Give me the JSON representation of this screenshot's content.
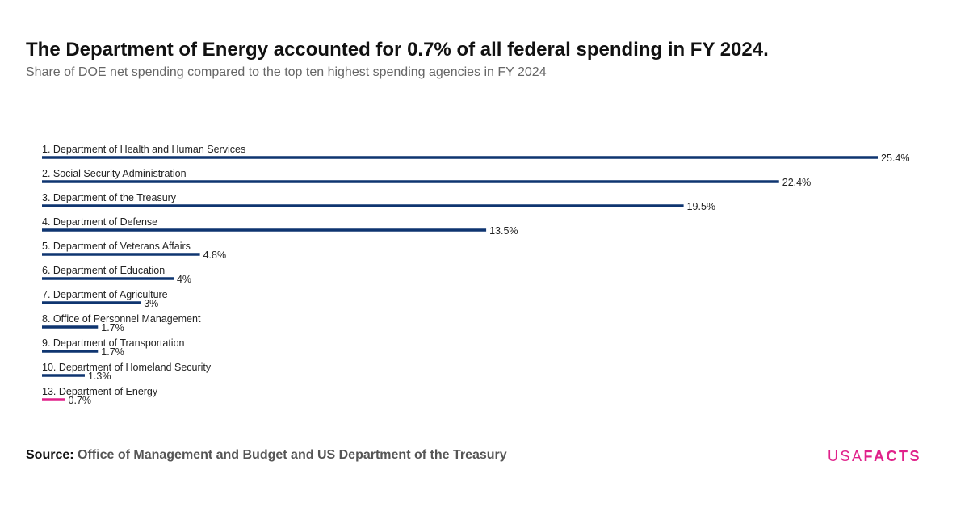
{
  "header": {
    "title": "The Department of Energy accounted for 0.7% of all federal spending in FY 2024.",
    "subtitle": "Share of DOE net spending compared to the top ten highest spending agencies in FY 2024"
  },
  "footer": {
    "source_label": "Source:",
    "source_text": "Office of Management and Budget and US Department of the Treasury",
    "logo_usa": "USA",
    "logo_facts": "FACTS"
  },
  "colors": {
    "bar_default": "#0f3570",
    "bar_highlight": "#e0218a",
    "text": "#222222"
  },
  "chart_data": {
    "type": "bar",
    "orientation": "horizontal",
    "categories": [
      "1. Department of Health and Human Services",
      "2. Social Security Administration",
      "3. Department of the Treasury",
      "4. Department of Defense",
      "5. Department of Veterans Affairs",
      "6. Department of Education",
      "7. Department of Agriculture",
      "8. Office of Personnel Management",
      "9. Department of Transportation",
      "10. Department of Homeland Security",
      "13. Department of Energy"
    ],
    "values": [
      25.4,
      22.4,
      19.5,
      13.5,
      4.8,
      4,
      3,
      1.7,
      1.7,
      1.3,
      0.7
    ],
    "value_labels": [
      "25.4%",
      "22.4%",
      "19.5%",
      "13.5%",
      "4.8%",
      "4%",
      "3%",
      "1.7%",
      "1.7%",
      "1.3%",
      "0.7%"
    ],
    "highlight": [
      "13. Department of Energy"
    ],
    "xlim": [
      0,
      25.4
    ],
    "grid": false,
    "legend": "none"
  }
}
